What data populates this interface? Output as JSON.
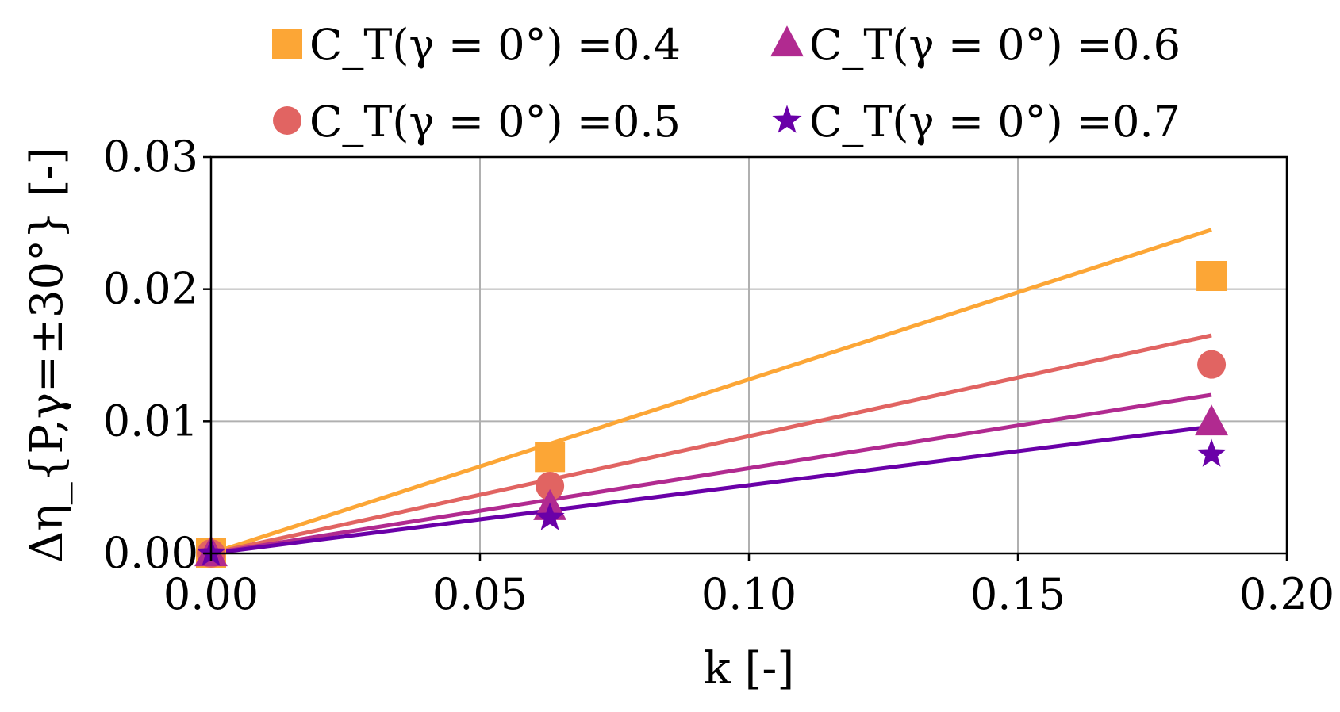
{
  "chart_data": {
    "type": "scatter",
    "title": "",
    "xlabel": "k [-]",
    "ylabel": "Δη_{P,γ=±30°} [-]",
    "xlim": [
      0.0,
      0.2
    ],
    "ylim": [
      0.0,
      0.03
    ],
    "x_ticks": [
      0.0,
      0.05,
      0.1,
      0.15,
      0.2
    ],
    "x_tick_labels": [
      "0.00",
      "0.05",
      "0.10",
      "0.15",
      "0.20"
    ],
    "y_ticks": [
      0.0,
      0.01,
      0.02,
      0.03
    ],
    "y_tick_labels": [
      "0.00",
      "0.01",
      "0.02",
      "0.03"
    ],
    "grid": true,
    "legend_placement": "above plot, two columns",
    "series": [
      {
        "name": "C_T(γ = 0°) =0.4",
        "color": "#fca636",
        "marker": "square",
        "x": [
          0.0,
          0.063,
          0.186
        ],
        "y": [
          0.0,
          0.0073,
          0.021
        ],
        "fit": {
          "x": [
            0.0,
            0.186
          ],
          "y": [
            0.0,
            0.0245
          ]
        }
      },
      {
        "name": "C_T(γ = 0°) =0.5",
        "color": "#e16462",
        "marker": "circle",
        "x": [
          0.0,
          0.063,
          0.186
        ],
        "y": [
          0.0,
          0.0051,
          0.0143
        ],
        "fit": {
          "x": [
            0.0,
            0.186
          ],
          "y": [
            0.0,
            0.0165
          ]
        }
      },
      {
        "name": "C_T(γ = 0°) =0.6",
        "color": "#b12a90",
        "marker": "triangle",
        "x": [
          0.0,
          0.063,
          0.186
        ],
        "y": [
          0.0,
          0.0035,
          0.0099
        ],
        "fit": {
          "x": [
            0.0,
            0.186
          ],
          "y": [
            0.0,
            0.012
          ]
        }
      },
      {
        "name": "C_T(γ = 0°) =0.7",
        "color": "#6a00a8",
        "marker": "star",
        "x": [
          0.0,
          0.063,
          0.186
        ],
        "y": [
          0.0,
          0.0027,
          0.0075
        ],
        "fit": {
          "x": [
            0.0,
            0.186
          ],
          "y": [
            0.0,
            0.0096
          ]
        }
      }
    ]
  }
}
